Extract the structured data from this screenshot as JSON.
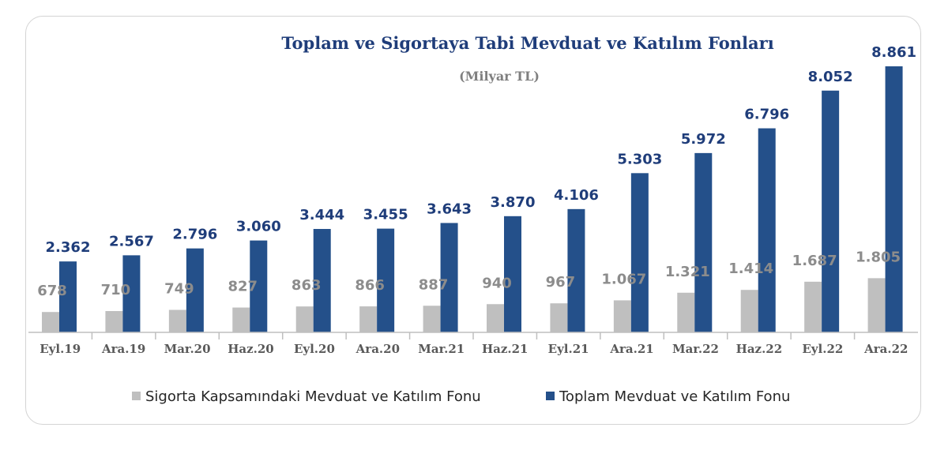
{
  "chart_data": {
    "type": "bar",
    "title": "Toplam ve Sigortaya Tabi Mevduat ve Katılım Fonları",
    "subtitle": "(Milyar TL)",
    "categories": [
      "Eyl.19",
      "Ara.19",
      "Mar.20",
      "Haz.20",
      "Eyl.20",
      "Ara.20",
      "Mar.21",
      "Haz.21",
      "Eyl.21",
      "Ara.21",
      "Mar.22",
      "Haz.22",
      "Eyl.22",
      "Ara.22"
    ],
    "series": [
      {
        "name": "Sigorta Kapsamındaki Mevduat ve Katılım Fonu",
        "values": [
          678,
          710,
          749,
          827,
          863,
          866,
          887,
          940,
          967,
          1067,
          1321,
          1414,
          1687,
          1805
        ],
        "labels": [
          "678",
          "710",
          "749",
          "827",
          "863",
          "866",
          "887",
          "940",
          "967",
          "1.067",
          "1.321",
          "1.414",
          "1.687",
          "1.805"
        ],
        "color": "#bfbfbf"
      },
      {
        "name": "Toplam Mevduat ve Katılım Fonu",
        "values": [
          2362,
          2567,
          2796,
          3060,
          3444,
          3455,
          3643,
          3870,
          4106,
          5303,
          5972,
          6796,
          8052,
          8861
        ],
        "labels": [
          "2.362",
          "2.567",
          "2.796",
          "3.060",
          "3.444",
          "3.455",
          "3.643",
          "3.870",
          "4.106",
          "5.303",
          "5.972",
          "6.796",
          "8.052",
          "8.861"
        ],
        "color": "#24508a"
      }
    ],
    "ylim": [
      0,
      9000
    ],
    "grid": false,
    "legend": "bottom"
  }
}
